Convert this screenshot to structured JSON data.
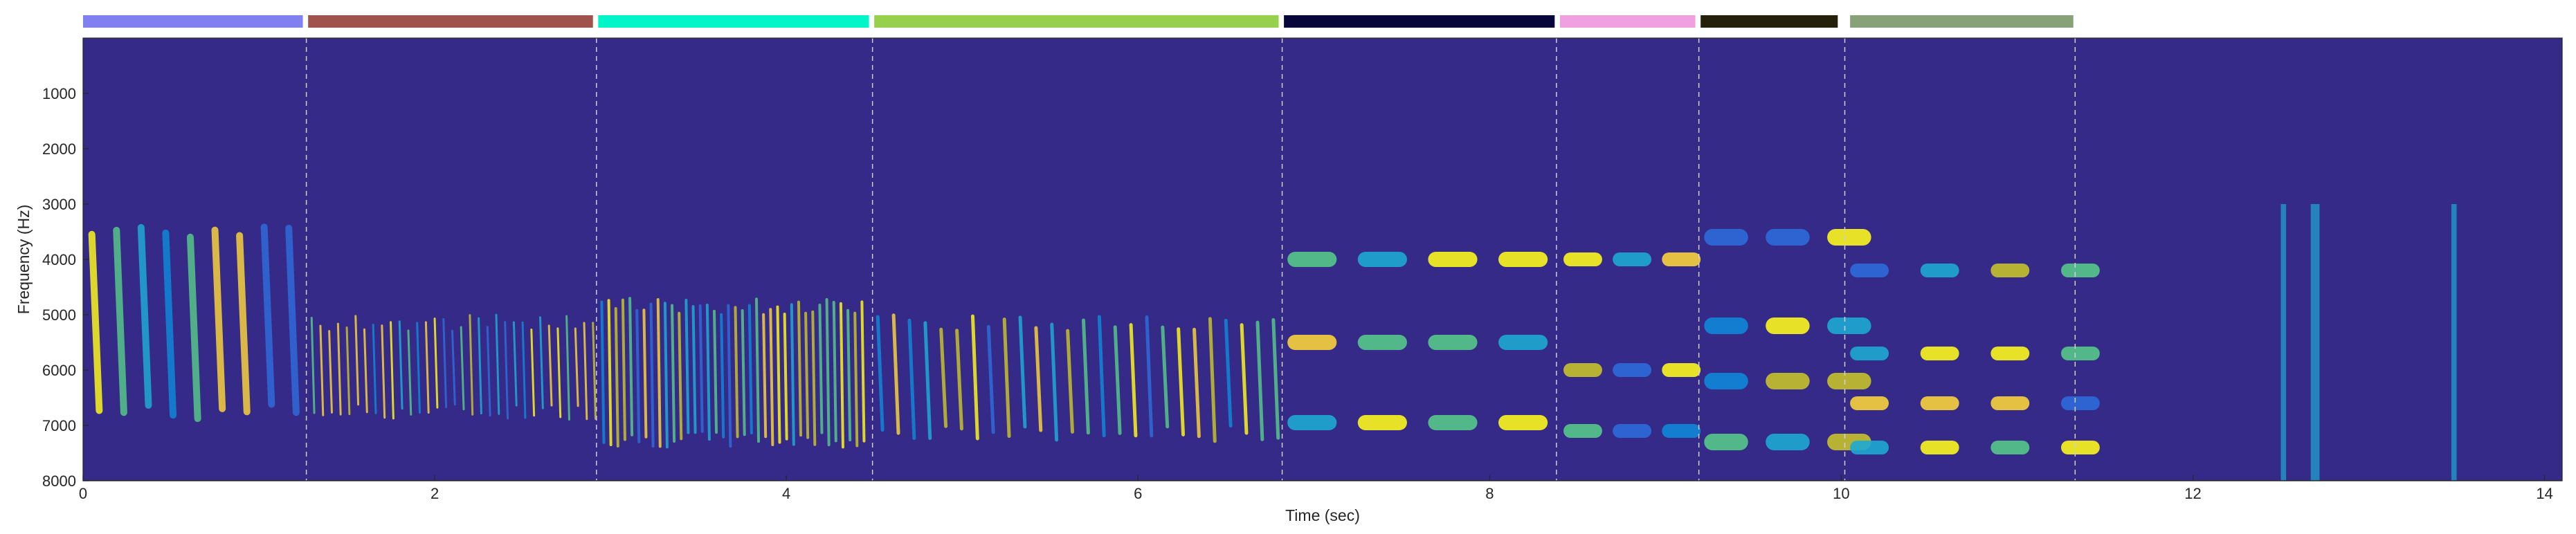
{
  "chart_data": {
    "type": "heatmap",
    "subtype": "spectrogram",
    "xlabel": "Time (sec)",
    "ylabel": "Frequency (Hz)",
    "xlim": [
      0,
      14.1
    ],
    "ylim": [
      0,
      8000
    ],
    "y_reversed": true,
    "x_ticks": [
      0,
      2,
      4,
      6,
      8,
      10,
      12,
      14
    ],
    "y_ticks": [
      1000,
      2000,
      3000,
      4000,
      5000,
      6000,
      7000,
      8000
    ],
    "background_color": "#352a87",
    "colormap": "parula",
    "segments": [
      {
        "start": 0.0,
        "end": 1.25,
        "color": "#8080f0"
      },
      {
        "start": 1.28,
        "end": 2.9,
        "color": "#a0524d"
      },
      {
        "start": 2.93,
        "end": 4.47,
        "color": "#00f5c8"
      },
      {
        "start": 4.5,
        "end": 6.8,
        "color": "#96d04c"
      },
      {
        "start": 6.83,
        "end": 8.37,
        "color": "#07063a"
      },
      {
        "start": 8.4,
        "end": 9.17,
        "color": "#f0a0e0"
      },
      {
        "start": 9.2,
        "end": 9.98,
        "color": "#24200a"
      },
      {
        "start": 10.05,
        "end": 11.32,
        "color": "#88a278"
      }
    ],
    "boundaries": [
      1.27,
      2.92,
      4.49,
      6.82,
      8.38,
      9.19,
      10.02,
      11.33
    ]
  }
}
